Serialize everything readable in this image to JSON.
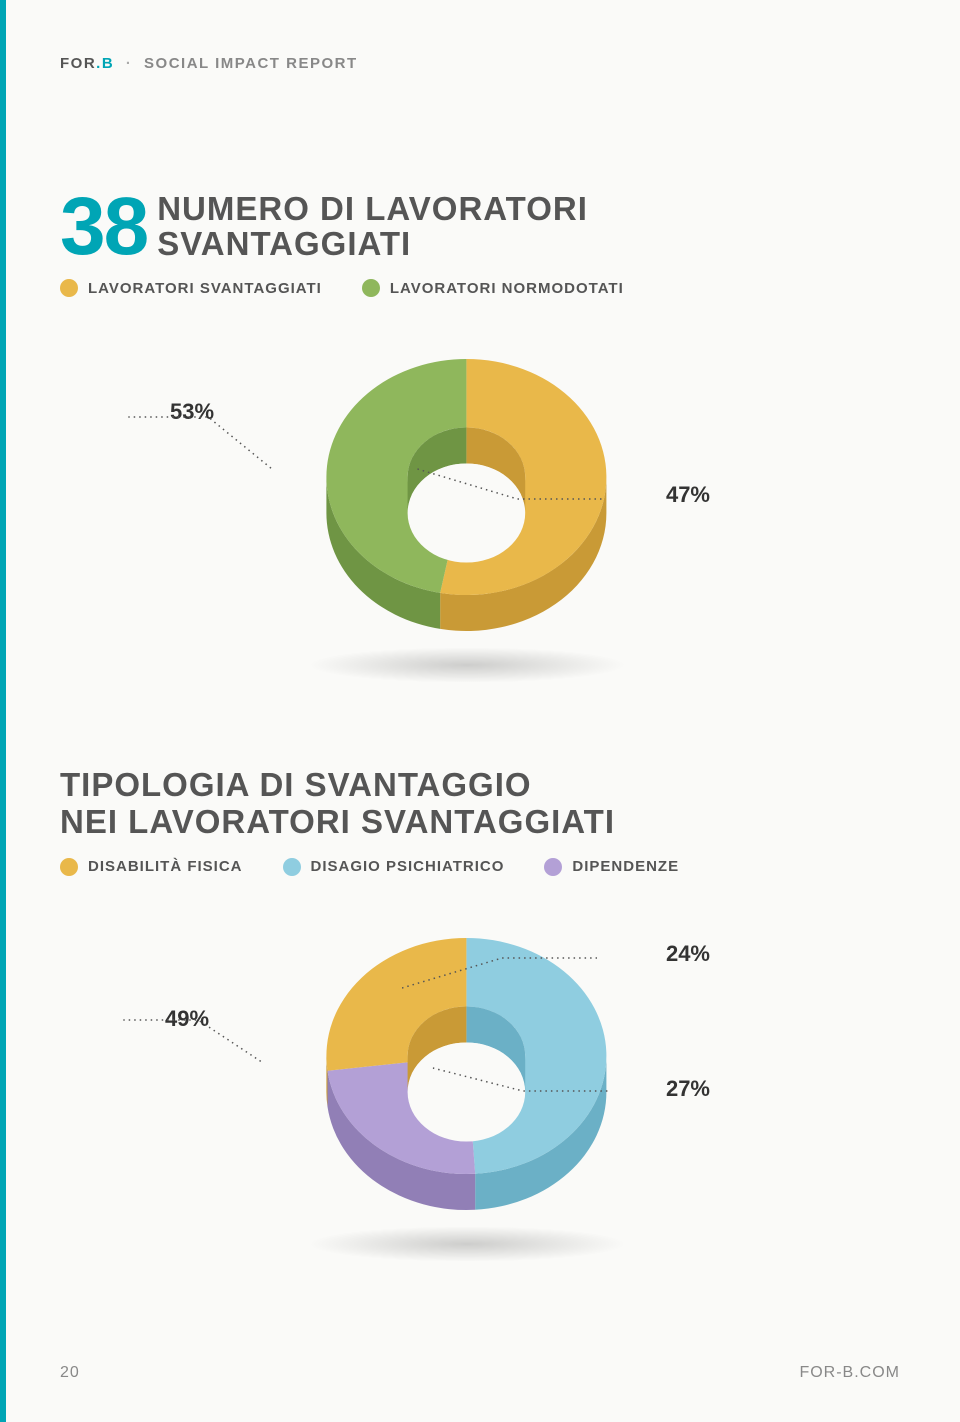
{
  "header": {
    "brand1": "FOR",
    "brand2": ".B",
    "separator": "·",
    "subtitle": "SOCIAL IMPACT REPORT"
  },
  "chart1": {
    "type": "donut-3d",
    "big_number": "38",
    "title_line1": "NUMERO DI LAVORATORI",
    "title_line2": "SVANTAGGIATI",
    "legend": [
      {
        "label": "LAVORATORI SVANTAGGIATI",
        "color": "#e9b84a"
      },
      {
        "label": "LAVORATORI NORMODOTATI",
        "color": "#8fb75c"
      }
    ],
    "slices": [
      {
        "value": 53,
        "label": "53%",
        "color_top": "#e9b84a",
        "color_side": "#c99a36"
      },
      {
        "value": 47,
        "label": "47%",
        "color_top": "#8fb75c",
        "color_side": "#6f9544"
      }
    ],
    "hole_color": "#fafaf8"
  },
  "chart2": {
    "type": "donut-3d",
    "title_line1": "TIPOLOGIA DI SVANTAGGIO",
    "title_line2": "NEI LAVORATORI SVANTAGGIATI",
    "legend": [
      {
        "label": "DISABILITÀ FISICA",
        "color": "#e9b84a"
      },
      {
        "label": "DISAGIO PSICHIATRICO",
        "color": "#8fcde0"
      },
      {
        "label": "DIPENDENZE",
        "color": "#b3a0d6"
      }
    ],
    "slices": [
      {
        "value": 49,
        "label": "49%",
        "color_top": "#8fcde0",
        "color_side": "#6bb0c6"
      },
      {
        "value": 24,
        "label": "24%",
        "color_top": "#b3a0d6",
        "color_side": "#917fb6"
      },
      {
        "value": 27,
        "label": "27%",
        "color_top": "#e9b84a",
        "color_side": "#c99a36"
      }
    ],
    "hole_color": "#fafaf8"
  },
  "footer": {
    "page_number": "20",
    "url": "FOR-B.COM"
  },
  "styling": {
    "accent_color": "#00a5b5",
    "text_color": "#555",
    "muted_color": "#888",
    "background": "#fafaf8",
    "title_fontsize": 33,
    "bignum_fontsize": 82,
    "legend_fontsize": 15,
    "callout_fontsize": 22
  }
}
